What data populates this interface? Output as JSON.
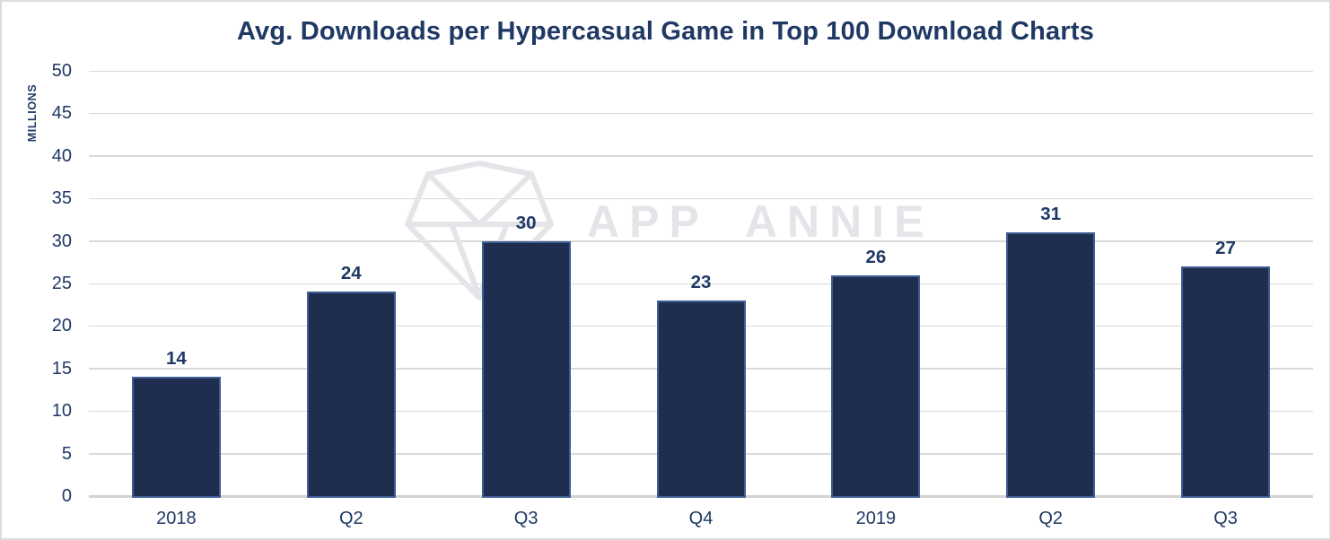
{
  "watermark": {
    "text": "APP ANNIE",
    "icon": "diamond-gem-icon",
    "color": "#e4e5e9"
  },
  "chart_data": {
    "type": "bar",
    "title": "Avg. Downloads per Hypercasual Game in Top 100 Download Charts",
    "xlabel": "",
    "ylabel": "MILLIONS",
    "categories": [
      "2018",
      "Q2",
      "Q3",
      "Q4",
      "2019",
      "Q2",
      "Q3"
    ],
    "values": [
      14,
      24,
      30,
      23,
      26,
      31,
      27
    ],
    "data_labels": [
      "14",
      "24",
      "30",
      "23",
      "26",
      "31",
      "27"
    ],
    "ylim": [
      0,
      50
    ],
    "y_ticks": [
      0,
      5,
      10,
      15,
      20,
      25,
      30,
      35,
      40,
      45,
      50
    ],
    "grid": "horizontal",
    "legend": "none",
    "colors": {
      "bar_fill": "#1f2e4f",
      "bar_border": "#3e5e95",
      "text": "#1f3864",
      "gridline": "#d9d9d9",
      "axis_line": "#d3d3d3",
      "frame_border": "#dcdcdc",
      "background": "#ffffff",
      "watermark": "#e4e5e9"
    }
  }
}
